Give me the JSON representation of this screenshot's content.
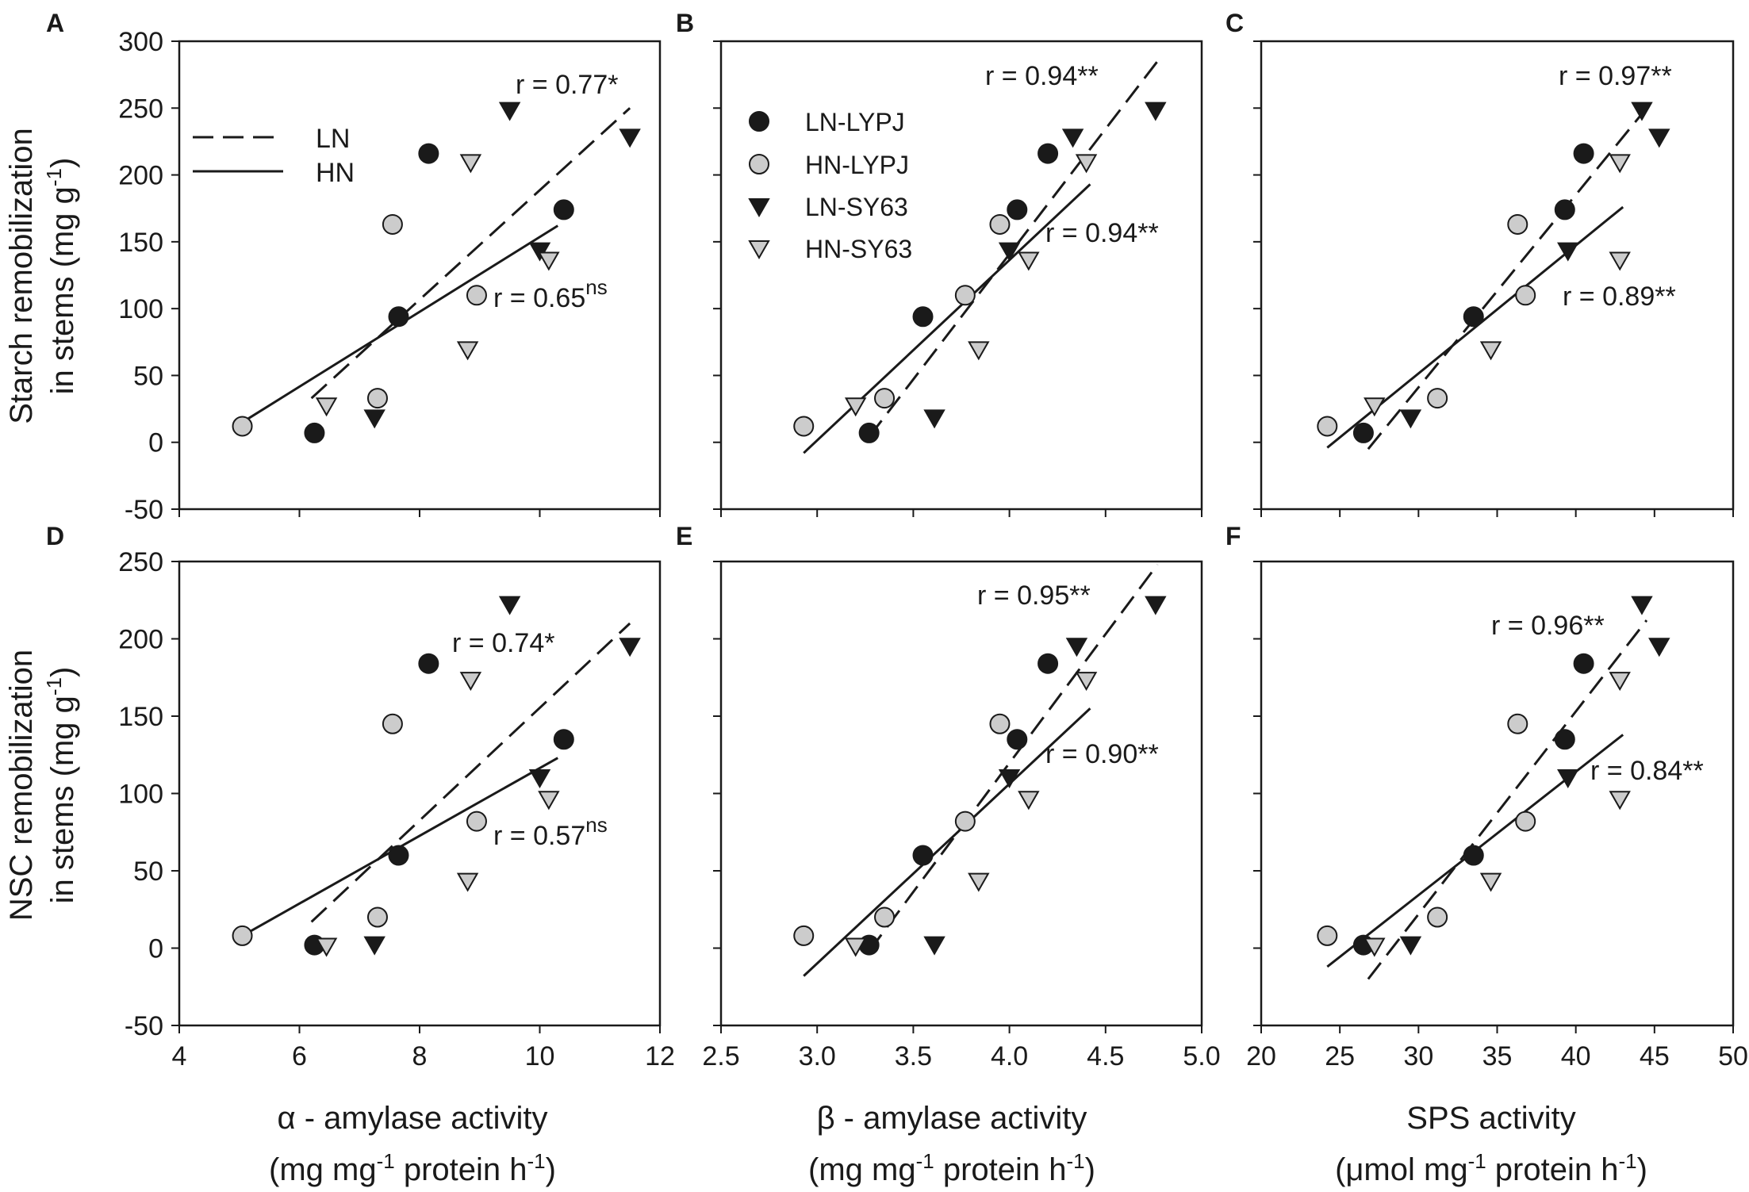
{
  "figure": {
    "ylabels": {
      "top": {
        "line1": "Starch remobilization",
        "line2": "in stems (mg g",
        "sup": "-1",
        "close": ")"
      },
      "bottom": {
        "line1": "NSC remobilization",
        "line2": "in stems (mg g",
        "sup": "-1",
        "close": ")"
      }
    },
    "xlabels": [
      {
        "line1": "α  - amylase activity",
        "line2": "(mg mg",
        "sup": "-1",
        "mid": " protein h",
        "sup2": "-1",
        "close": ")"
      },
      {
        "line1": "β  - amylase activity",
        "line2": "(mg mg",
        "sup": "-1",
        "mid": " protein h",
        "sup2": "-1",
        "close": ")"
      },
      {
        "line1": "SPS activity",
        "line2": "(μmol mg",
        "sup": "-1",
        "mid": " protein h",
        "sup2": "-1",
        "close": ")"
      }
    ],
    "legend_lines": [
      {
        "label": "LN",
        "style": "dashed"
      },
      {
        "label": "HN",
        "style": "solid"
      }
    ],
    "legend_points": [
      {
        "label": "LN-LYPJ",
        "marker": "circle",
        "fill": "#1a1a1a"
      },
      {
        "label": "HN-LYPJ",
        "marker": "circle",
        "fill": "#cccccc"
      },
      {
        "label": "LN-SY63",
        "marker": "triangle",
        "fill": "#1a1a1a"
      },
      {
        "label": "HN-SY63",
        "marker": "triangle",
        "fill": "#cccccc"
      }
    ],
    "colors": {
      "dark": "#1a1a1a",
      "light": "#cccccc",
      "stroke": "#1a1a1a"
    }
  },
  "chart_data": [
    {
      "panel": "A",
      "type": "scatter",
      "xlim": [
        4,
        12
      ],
      "xticks": [
        "4",
        "6",
        "8",
        "10",
        "12"
      ],
      "ylim": [
        -50,
        300
      ],
      "yticks": [
        "-50",
        "0",
        "50",
        "100",
        "150",
        "200",
        "250",
        "300"
      ],
      "series": [
        {
          "name": "LN-LYPJ",
          "x": [
            6.25,
            7.65,
            8.15,
            10.4
          ],
          "y": [
            7,
            94,
            216,
            174
          ]
        },
        {
          "name": "HN-LYPJ",
          "x": [
            5.05,
            7.3,
            7.55,
            8.95
          ],
          "y": [
            12,
            33,
            163,
            110
          ]
        },
        {
          "name": "LN-SY63",
          "x": [
            7.25,
            9.5,
            10.0,
            11.5
          ],
          "y": [
            18,
            248,
            143,
            228
          ]
        },
        {
          "name": "HN-SY63",
          "x": [
            6.45,
            8.8,
            8.85,
            10.15
          ],
          "y": [
            27,
            69,
            209,
            136
          ]
        }
      ],
      "fits": [
        {
          "name": "LN",
          "x": [
            6.2,
            11.5
          ],
          "y": [
            33,
            250
          ],
          "r": "r = 0.77*",
          "sig": ""
        },
        {
          "name": "HN",
          "x": [
            5.05,
            10.3
          ],
          "y": [
            15,
            162
          ],
          "r": "r = 0.65",
          "sig": "ns"
        }
      ]
    },
    {
      "panel": "B",
      "type": "scatter",
      "xlim": [
        2.5,
        5.0
      ],
      "xticks": [
        "2.5",
        "3.0",
        "3.5",
        "4.0",
        "4.5",
        "5.0"
      ],
      "ylim": [
        -50,
        300
      ],
      "yticks": [],
      "series": [
        {
          "name": "LN-LYPJ",
          "x": [
            3.27,
            3.55,
            4.04,
            4.2
          ],
          "y": [
            7,
            94,
            174,
            216
          ]
        },
        {
          "name": "HN-LYPJ",
          "x": [
            2.93,
            3.35,
            3.77,
            3.95
          ],
          "y": [
            12,
            33,
            110,
            163
          ]
        },
        {
          "name": "LN-SY63",
          "x": [
            3.61,
            4.0,
            4.33,
            4.76
          ],
          "y": [
            18,
            143,
            228,
            248
          ]
        },
        {
          "name": "HN-SY63",
          "x": [
            3.2,
            3.84,
            4.1,
            4.4
          ],
          "y": [
            27,
            69,
            136,
            209
          ]
        }
      ],
      "fits": [
        {
          "name": "LN",
          "x": [
            3.27,
            4.77
          ],
          "y": [
            4,
            285
          ],
          "r": "r = 0.94**",
          "sig": ""
        },
        {
          "name": "HN",
          "x": [
            2.93,
            4.42
          ],
          "y": [
            -8,
            193
          ],
          "r": "r = 0.94**",
          "sig": ""
        }
      ]
    },
    {
      "panel": "C",
      "type": "scatter",
      "xlim": [
        20,
        50
      ],
      "xticks": [
        "20",
        "25",
        "30",
        "35",
        "40",
        "45",
        "50"
      ],
      "ylim": [
        -50,
        300
      ],
      "yticks": [],
      "series": [
        {
          "name": "LN-LYPJ",
          "x": [
            26.5,
            33.5,
            39.3,
            40.5
          ],
          "y": [
            7,
            94,
            174,
            216
          ]
        },
        {
          "name": "HN-LYPJ",
          "x": [
            24.2,
            31.2,
            36.3,
            36.8
          ],
          "y": [
            12,
            33,
            163,
            110
          ]
        },
        {
          "name": "LN-SY63",
          "x": [
            29.5,
            39.5,
            44.2,
            45.3
          ],
          "y": [
            18,
            143,
            248,
            228
          ]
        },
        {
          "name": "HN-SY63",
          "x": [
            27.2,
            34.6,
            42.8,
            42.8
          ],
          "y": [
            27,
            69,
            136,
            209
          ]
        }
      ],
      "fits": [
        {
          "name": "LN",
          "x": [
            26.8,
            44.5
          ],
          "y": [
            -5,
            250
          ],
          "r": "r = 0.97**",
          "sig": ""
        },
        {
          "name": "HN",
          "x": [
            24.2,
            43.0
          ],
          "y": [
            -4,
            176
          ],
          "r": "r = 0.89**",
          "sig": ""
        }
      ]
    },
    {
      "panel": "D",
      "type": "scatter",
      "xlim": [
        4,
        12
      ],
      "xticks": [
        "4",
        "6",
        "8",
        "10",
        "12"
      ],
      "ylim": [
        -50,
        250
      ],
      "yticks": [
        "-50",
        "0",
        "50",
        "100",
        "150",
        "200",
        "250"
      ],
      "series": [
        {
          "name": "LN-LYPJ",
          "x": [
            6.25,
            7.65,
            8.15,
            10.4
          ],
          "y": [
            2,
            60,
            184,
            135
          ]
        },
        {
          "name": "HN-LYPJ",
          "x": [
            5.05,
            7.3,
            7.55,
            8.95
          ],
          "y": [
            8,
            20,
            145,
            82
          ]
        },
        {
          "name": "LN-SY63",
          "x": [
            7.25,
            9.5,
            10.0,
            11.5
          ],
          "y": [
            2,
            222,
            110,
            195
          ]
        },
        {
          "name": "HN-SY63",
          "x": [
            6.45,
            8.8,
            8.85,
            10.15
          ],
          "y": [
            1,
            43,
            173,
            96
          ]
        }
      ],
      "fits": [
        {
          "name": "LN",
          "x": [
            6.2,
            11.5
          ],
          "y": [
            17,
            210
          ],
          "r": "r = 0.74*",
          "sig": ""
        },
        {
          "name": "HN",
          "x": [
            5.05,
            10.3
          ],
          "y": [
            8,
            123
          ],
          "r": "r = 0.57",
          "sig": "ns"
        }
      ]
    },
    {
      "panel": "E",
      "type": "scatter",
      "xlim": [
        2.5,
        5.0
      ],
      "xticks": [
        "2.5",
        "3.0",
        "3.5",
        "4.0",
        "4.5",
        "5.0"
      ],
      "ylim": [
        -50,
        250
      ],
      "yticks": [],
      "series": [
        {
          "name": "LN-LYPJ",
          "x": [
            3.27,
            3.55,
            4.04,
            4.2
          ],
          "y": [
            2,
            60,
            135,
            184
          ]
        },
        {
          "name": "HN-LYPJ",
          "x": [
            2.93,
            3.35,
            3.77,
            3.95
          ],
          "y": [
            8,
            20,
            82,
            145
          ]
        },
        {
          "name": "LN-SY63",
          "x": [
            3.61,
            4.0,
            4.35,
            4.76
          ],
          "y": [
            2,
            110,
            195,
            222
          ]
        },
        {
          "name": "HN-SY63",
          "x": [
            3.2,
            3.84,
            4.1,
            4.4
          ],
          "y": [
            1,
            43,
            96,
            173
          ]
        }
      ],
      "fits": [
        {
          "name": "LN",
          "x": [
            3.27,
            4.77
          ],
          "y": [
            -2,
            248
          ],
          "r": "r = 0.95**",
          "sig": ""
        },
        {
          "name": "HN",
          "x": [
            2.93,
            4.42
          ],
          "y": [
            -18,
            155
          ],
          "r": "r = 0.90**",
          "sig": ""
        }
      ]
    },
    {
      "panel": "F",
      "type": "scatter",
      "xlim": [
        20,
        50
      ],
      "xticks": [
        "20",
        "25",
        "30",
        "35",
        "40",
        "45",
        "50"
      ],
      "ylim": [
        -50,
        250
      ],
      "yticks": [],
      "series": [
        {
          "name": "LN-LYPJ",
          "x": [
            26.5,
            33.5,
            39.3,
            40.5
          ],
          "y": [
            2,
            60,
            135,
            184
          ]
        },
        {
          "name": "HN-LYPJ",
          "x": [
            24.2,
            31.2,
            36.3,
            36.8
          ],
          "y": [
            8,
            20,
            145,
            82
          ]
        },
        {
          "name": "LN-SY63",
          "x": [
            29.5,
            39.5,
            44.2,
            45.3
          ],
          "y": [
            2,
            110,
            222,
            195
          ]
        },
        {
          "name": "HN-SY63",
          "x": [
            27.2,
            34.6,
            42.8,
            42.8
          ],
          "y": [
            1,
            43,
            96,
            173
          ]
        }
      ],
      "fits": [
        {
          "name": "LN",
          "x": [
            26.8,
            44.5
          ],
          "y": [
            -20,
            212
          ],
          "r": "r = 0.96**",
          "sig": ""
        },
        {
          "name": "HN",
          "x": [
            24.2,
            43.0
          ],
          "y": [
            -12,
            138
          ],
          "r": "r = 0.84**",
          "sig": ""
        }
      ]
    }
  ]
}
